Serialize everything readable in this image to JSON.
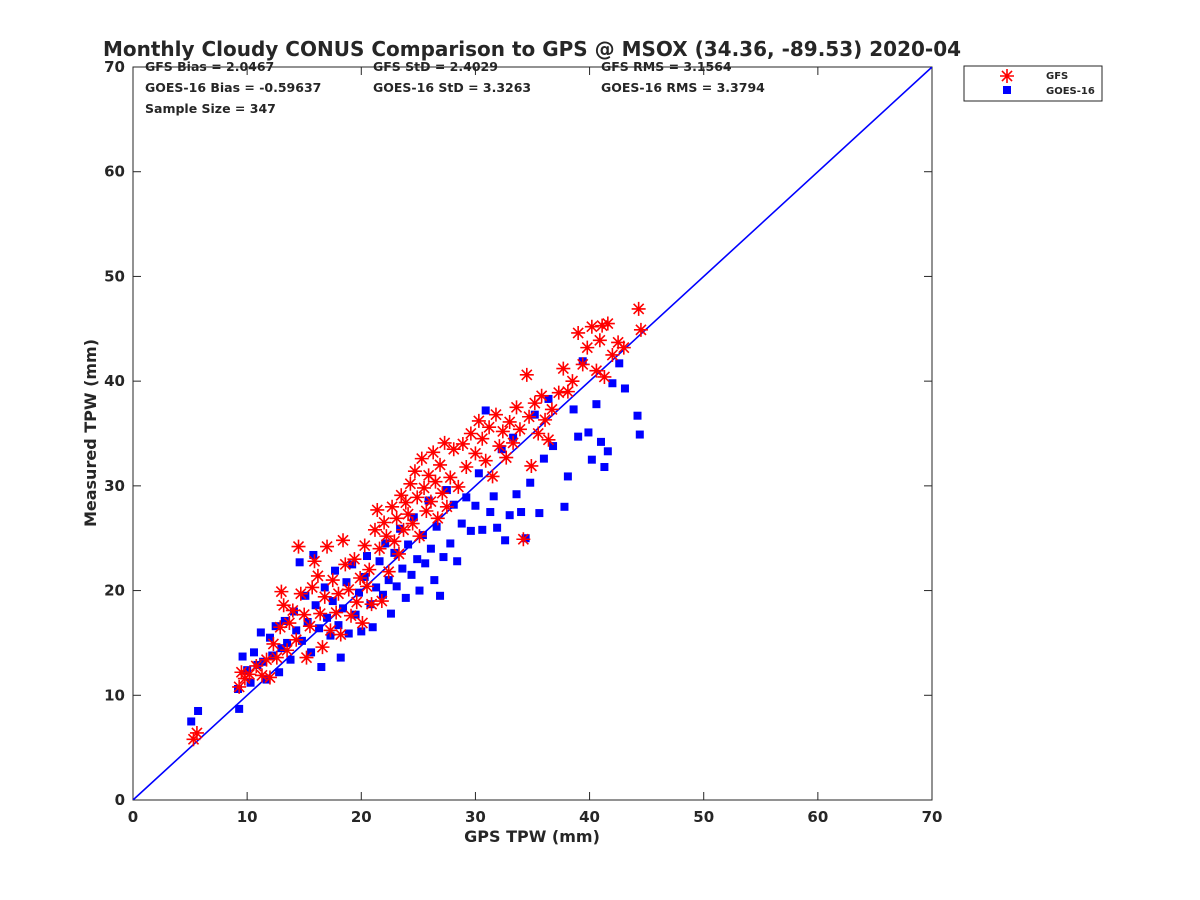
{
  "chart_data": {
    "type": "scatter",
    "title": "Monthly Cloudy CONUS Comparison to GPS @ MSOX (34.36, -89.53) 2020-04",
    "xlabel": "GPS TPW (mm)",
    "ylabel": "Measured TPW (mm)",
    "xlim": [
      0,
      70
    ],
    "ylim": [
      0,
      70
    ],
    "xticks": [
      0,
      10,
      20,
      30,
      40,
      50,
      60,
      70
    ],
    "yticks": [
      0,
      10,
      20,
      30,
      40,
      50,
      60,
      70
    ],
    "grid": false,
    "legend_position": "top-right",
    "stats": {
      "gfs_bias": "GFS Bias = 2.0467",
      "gfs_std": "GFS StD = 2.4029",
      "gfs_rms": "GFS RMS = 3.1564",
      "goes_bias": "GOES-16 Bias = -0.59637",
      "goes_std": "GOES-16 StD = 3.3263",
      "goes_rms": "GOES-16 RMS = 3.3794",
      "sample_size": "Sample Size = 347"
    },
    "reference_line": {
      "from": [
        0,
        0
      ],
      "to": [
        70,
        70
      ],
      "color": "#0000ff"
    },
    "series": [
      {
        "name": "GFS",
        "marker": "asterisk",
        "color": "#ff0000",
        "points": [
          [
            5.3,
            5.8
          ],
          [
            5.6,
            6.4
          ],
          [
            9.3,
            10.8
          ],
          [
            9.5,
            12.2
          ],
          [
            9.8,
            11.6
          ],
          [
            10.2,
            12.0
          ],
          [
            10.8,
            12.8
          ],
          [
            11.3,
            11.9
          ],
          [
            11.7,
            13.4
          ],
          [
            12.0,
            11.7
          ],
          [
            12.3,
            14.9
          ],
          [
            12.6,
            13.6
          ],
          [
            12.9,
            16.5
          ],
          [
            13.0,
            19.9
          ],
          [
            13.2,
            18.6
          ],
          [
            13.5,
            14.3
          ],
          [
            13.7,
            16.9
          ],
          [
            14.0,
            18.1
          ],
          [
            14.3,
            15.3
          ],
          [
            14.5,
            24.2
          ],
          [
            14.7,
            19.7
          ],
          [
            15.0,
            17.7
          ],
          [
            15.2,
            13.6
          ],
          [
            15.5,
            16.6
          ],
          [
            15.7,
            20.3
          ],
          [
            15.9,
            22.8
          ],
          [
            16.2,
            21.4
          ],
          [
            16.4,
            17.8
          ],
          [
            16.6,
            14.6
          ],
          [
            16.8,
            19.4
          ],
          [
            17.0,
            24.2
          ],
          [
            17.3,
            16.2
          ],
          [
            17.5,
            21.0
          ],
          [
            17.8,
            17.9
          ],
          [
            18.0,
            19.7
          ],
          [
            18.2,
            15.8
          ],
          [
            18.4,
            24.8
          ],
          [
            18.6,
            22.5
          ],
          [
            18.9,
            20.1
          ],
          [
            19.1,
            17.6
          ],
          [
            19.4,
            23.0
          ],
          [
            19.6,
            18.9
          ],
          [
            19.9,
            21.2
          ],
          [
            20.1,
            16.9
          ],
          [
            20.3,
            24.3
          ],
          [
            20.5,
            20.4
          ],
          [
            20.7,
            22.0
          ],
          [
            20.9,
            18.7
          ],
          [
            21.2,
            25.8
          ],
          [
            21.4,
            27.7
          ],
          [
            21.6,
            24.0
          ],
          [
            21.8,
            19.0
          ],
          [
            22.0,
            26.5
          ],
          [
            22.2,
            25.2
          ],
          [
            22.4,
            21.8
          ],
          [
            22.7,
            28.0
          ],
          [
            22.9,
            24.7
          ],
          [
            23.1,
            26.9
          ],
          [
            23.3,
            23.5
          ],
          [
            23.5,
            29.1
          ],
          [
            23.7,
            25.8
          ],
          [
            23.9,
            28.4
          ],
          [
            24.1,
            27.3
          ],
          [
            24.3,
            30.2
          ],
          [
            24.5,
            26.4
          ],
          [
            24.7,
            31.4
          ],
          [
            24.9,
            28.9
          ],
          [
            25.1,
            25.2
          ],
          [
            25.3,
            32.6
          ],
          [
            25.5,
            29.8
          ],
          [
            25.7,
            27.6
          ],
          [
            25.9,
            31.0
          ],
          [
            26.1,
            28.5
          ],
          [
            26.3,
            33.2
          ],
          [
            26.5,
            30.4
          ],
          [
            26.7,
            26.9
          ],
          [
            26.9,
            32.0
          ],
          [
            27.1,
            29.3
          ],
          [
            27.3,
            34.1
          ],
          [
            27.5,
            28.0
          ],
          [
            27.8,
            30.8
          ],
          [
            28.1,
            33.5
          ],
          [
            28.5,
            29.9
          ],
          [
            28.9,
            34.0
          ],
          [
            29.2,
            31.8
          ],
          [
            29.6,
            35.0
          ],
          [
            30.0,
            33.1
          ],
          [
            30.3,
            36.2
          ],
          [
            30.6,
            34.5
          ],
          [
            30.9,
            32.4
          ],
          [
            31.2,
            35.6
          ],
          [
            31.5,
            30.9
          ],
          [
            31.8,
            36.8
          ],
          [
            32.1,
            33.8
          ],
          [
            32.4,
            35.2
          ],
          [
            32.7,
            32.7
          ],
          [
            33.0,
            36.1
          ],
          [
            33.3,
            34.1
          ],
          [
            33.6,
            37.5
          ],
          [
            33.9,
            35.4
          ],
          [
            34.2,
            24.9
          ],
          [
            34.5,
            40.6
          ],
          [
            34.7,
            36.6
          ],
          [
            34.9,
            31.9
          ],
          [
            35.2,
            37.9
          ],
          [
            35.5,
            35.0
          ],
          [
            35.8,
            38.6
          ],
          [
            36.1,
            36.3
          ],
          [
            36.4,
            34.4
          ],
          [
            36.7,
            37.3
          ],
          [
            37.3,
            38.9
          ],
          [
            37.7,
            41.2
          ],
          [
            38.1,
            39.0
          ],
          [
            38.5,
            40.0
          ],
          [
            39.0,
            44.6
          ],
          [
            39.4,
            41.6
          ],
          [
            39.8,
            43.2
          ],
          [
            40.2,
            45.2
          ],
          [
            40.6,
            41.0
          ],
          [
            40.9,
            43.9
          ],
          [
            41.1,
            45.3
          ],
          [
            41.3,
            40.4
          ],
          [
            41.6,
            45.5
          ],
          [
            42.0,
            42.5
          ],
          [
            42.5,
            43.7
          ],
          [
            43.0,
            43.2
          ],
          [
            44.3,
            46.9
          ],
          [
            44.5,
            44.9
          ]
        ]
      },
      {
        "name": "GOES-16",
        "marker": "square",
        "color": "#0000ff",
        "points": [
          [
            5.1,
            7.5
          ],
          [
            5.7,
            8.5
          ],
          [
            9.2,
            10.6
          ],
          [
            9.3,
            8.7
          ],
          [
            9.6,
            13.7
          ],
          [
            10.0,
            12.4
          ],
          [
            10.3,
            11.2
          ],
          [
            10.6,
            14.1
          ],
          [
            10.9,
            12.9
          ],
          [
            11.2,
            16.0
          ],
          [
            11.4,
            13.2
          ],
          [
            11.7,
            11.5
          ],
          [
            12.0,
            15.5
          ],
          [
            12.2,
            13.8
          ],
          [
            12.5,
            16.6
          ],
          [
            12.8,
            12.2
          ],
          [
            13.0,
            14.5
          ],
          [
            13.3,
            17.1
          ],
          [
            13.5,
            15.0
          ],
          [
            13.8,
            13.4
          ],
          [
            14.1,
            18.0
          ],
          [
            14.3,
            16.2
          ],
          [
            14.6,
            22.7
          ],
          [
            14.8,
            15.2
          ],
          [
            15.1,
            19.5
          ],
          [
            15.3,
            17.0
          ],
          [
            15.6,
            14.1
          ],
          [
            15.8,
            23.4
          ],
          [
            16.0,
            18.6
          ],
          [
            16.3,
            16.4
          ],
          [
            16.5,
            12.7
          ],
          [
            16.8,
            20.3
          ],
          [
            17.0,
            17.4
          ],
          [
            17.3,
            15.7
          ],
          [
            17.5,
            19.0
          ],
          [
            17.7,
            21.9
          ],
          [
            18.0,
            16.7
          ],
          [
            18.2,
            13.6
          ],
          [
            18.4,
            18.3
          ],
          [
            18.7,
            20.8
          ],
          [
            18.9,
            15.9
          ],
          [
            19.2,
            22.5
          ],
          [
            19.5,
            17.7
          ],
          [
            19.8,
            19.8
          ],
          [
            20.0,
            16.1
          ],
          [
            20.3,
            21.3
          ],
          [
            20.5,
            23.3
          ],
          [
            20.8,
            18.7
          ],
          [
            21.0,
            16.5
          ],
          [
            21.3,
            20.3
          ],
          [
            21.6,
            22.8
          ],
          [
            21.9,
            19.6
          ],
          [
            22.1,
            24.5
          ],
          [
            22.4,
            21.0
          ],
          [
            22.6,
            17.8
          ],
          [
            22.9,
            23.6
          ],
          [
            23.1,
            20.4
          ],
          [
            23.4,
            25.9
          ],
          [
            23.6,
            22.1
          ],
          [
            23.9,
            19.3
          ],
          [
            24.1,
            24.4
          ],
          [
            24.4,
            21.5
          ],
          [
            24.6,
            27.0
          ],
          [
            24.9,
            23.0
          ],
          [
            25.1,
            20.0
          ],
          [
            25.4,
            25.3
          ],
          [
            25.6,
            22.6
          ],
          [
            25.9,
            28.6
          ],
          [
            26.1,
            24.0
          ],
          [
            26.4,
            21.0
          ],
          [
            26.6,
            26.1
          ],
          [
            26.9,
            19.5
          ],
          [
            27.2,
            23.2
          ],
          [
            27.5,
            29.6
          ],
          [
            27.8,
            24.5
          ],
          [
            28.1,
            28.2
          ],
          [
            28.4,
            22.8
          ],
          [
            28.8,
            26.4
          ],
          [
            29.2,
            28.9
          ],
          [
            29.6,
            25.7
          ],
          [
            30.0,
            28.1
          ],
          [
            30.3,
            31.2
          ],
          [
            30.6,
            25.8
          ],
          [
            30.9,
            37.2
          ],
          [
            31.3,
            27.5
          ],
          [
            31.6,
            29.0
          ],
          [
            31.9,
            26.0
          ],
          [
            32.3,
            33.5
          ],
          [
            32.6,
            24.8
          ],
          [
            33.0,
            27.2
          ],
          [
            33.3,
            34.6
          ],
          [
            33.6,
            29.2
          ],
          [
            34.0,
            27.5
          ],
          [
            34.4,
            25.0
          ],
          [
            34.8,
            30.3
          ],
          [
            35.2,
            36.8
          ],
          [
            35.6,
            27.4
          ],
          [
            36.0,
            32.6
          ],
          [
            36.4,
            38.3
          ],
          [
            36.8,
            33.8
          ],
          [
            37.8,
            28.0
          ],
          [
            38.1,
            30.9
          ],
          [
            38.6,
            37.3
          ],
          [
            39.0,
            34.7
          ],
          [
            39.4,
            41.9
          ],
          [
            39.9,
            35.1
          ],
          [
            40.2,
            32.5
          ],
          [
            40.6,
            37.8
          ],
          [
            41.0,
            34.2
          ],
          [
            41.3,
            31.8
          ],
          [
            41.6,
            33.3
          ],
          [
            42.0,
            39.8
          ],
          [
            42.6,
            41.7
          ],
          [
            43.1,
            39.3
          ],
          [
            44.2,
            36.7
          ],
          [
            44.4,
            34.9
          ]
        ]
      }
    ]
  }
}
